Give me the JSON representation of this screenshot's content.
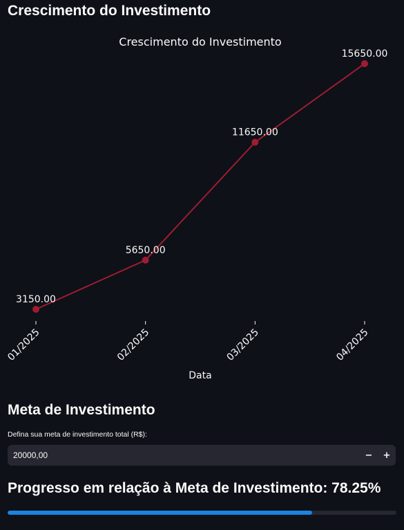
{
  "sections": {
    "growth_title": "Crescimento do Investimento",
    "goal_title": "Meta de Investimento",
    "progress_prefix": "Progresso em relação à Meta de Investimento: ",
    "progress_value": "78.25%"
  },
  "goal_input": {
    "label": "Defina sua meta de investimento total (R$):",
    "value": "20000,00",
    "decrement_icon": "minus-icon",
    "increment_icon": "plus-icon"
  },
  "progress": {
    "fraction": 0.7825
  },
  "colors": {
    "background": "#0e1117",
    "line": "#9e1c33",
    "progress_fill": "#1c83e1",
    "progress_track": "#262730",
    "input_bg": "#262730"
  },
  "chart_data": {
    "type": "line",
    "title": "Crescimento do Investimento",
    "xlabel": "Data",
    "ylabel": "",
    "categories": [
      "01/2025",
      "02/2025",
      "03/2025",
      "04/2025"
    ],
    "values": [
      3150,
      5650,
      11650,
      15650
    ],
    "data_labels": [
      "3150.00",
      "5650.00",
      "11650.00",
      "15650.00"
    ],
    "grid": false,
    "legend": "none"
  }
}
